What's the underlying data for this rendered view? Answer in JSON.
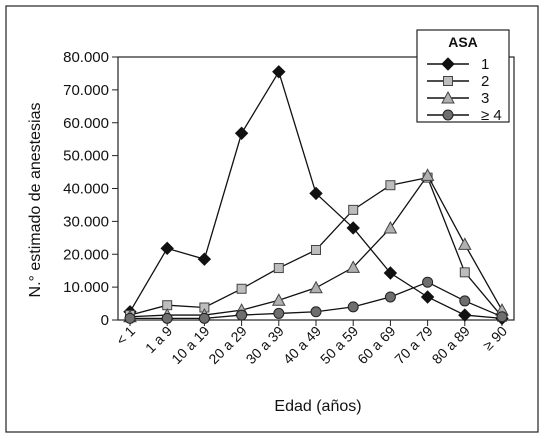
{
  "chart_data": {
    "type": "line",
    "title": "",
    "xlabel": "Edad (años)",
    "ylabel": "N.° estimado de anestesias",
    "ylim": [
      0,
      80000
    ],
    "yticks": [
      0,
      10000,
      20000,
      30000,
      40000,
      50000,
      60000,
      70000,
      80000
    ],
    "ytick_labels": [
      "0",
      "10.000",
      "20.000",
      "30.000",
      "40.000",
      "50.000",
      "60.000",
      "70.000",
      "80.000"
    ],
    "categories": [
      "< 1",
      "1 a 9",
      "10 a 19",
      "20 a 29",
      "30 a 39",
      "40 a 49",
      "50 a 59",
      "60 a 69",
      "70 a 79",
      "80 a 89",
      "≥ 90"
    ],
    "grid": false,
    "legend": {
      "title": "ASA",
      "position": "top-right"
    },
    "series": [
      {
        "name": "1",
        "marker": "diamond",
        "color": "#111111",
        "values": [
          2500,
          21800,
          18500,
          56800,
          75500,
          38500,
          28000,
          14300,
          7000,
          1500,
          500
        ]
      },
      {
        "name": "2",
        "marker": "square",
        "color": "#a8a8a8",
        "values": [
          1500,
          4500,
          3800,
          9500,
          15800,
          21300,
          33500,
          41000,
          43300,
          14500,
          1000
        ]
      },
      {
        "name": "3",
        "marker": "triangle",
        "color": "#a8a8a8",
        "values": [
          1000,
          1500,
          1500,
          3000,
          6000,
          9800,
          16000,
          28000,
          44000,
          23000,
          3000
        ]
      },
      {
        "name": "≥ 4",
        "marker": "circle",
        "color": "#6e6e6e",
        "values": [
          500,
          500,
          500,
          1500,
          2000,
          2500,
          4000,
          7000,
          11500,
          5800,
          1000
        ]
      }
    ]
  }
}
